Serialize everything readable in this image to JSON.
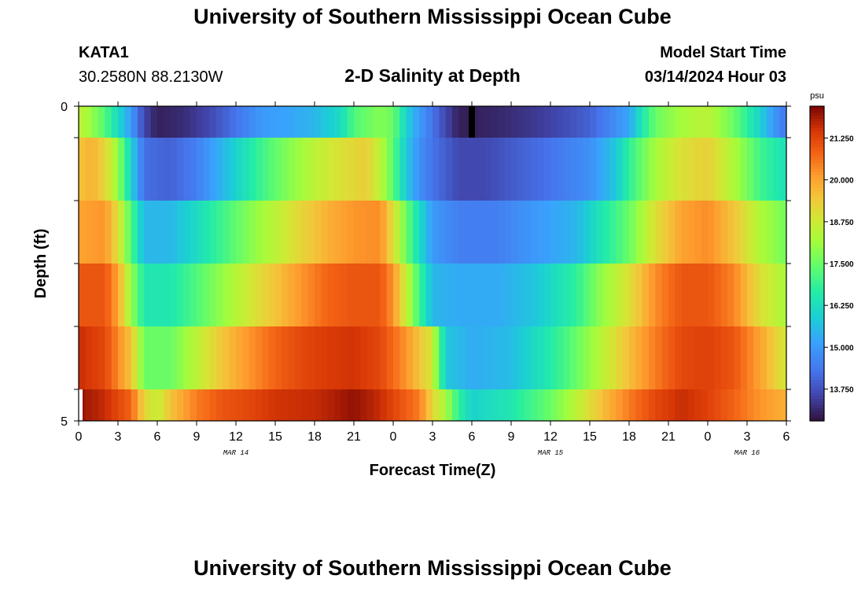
{
  "header": {
    "title": "University of Southern Mississippi Ocean Cube",
    "station": "KATA1",
    "coords": "30.2580N  88.2130W",
    "subtitle": "2-D Salinity at Depth",
    "model_label": "Model Start Time",
    "model_time": "03/14/2024 Hour 03"
  },
  "footer": {
    "title": "University of Southern Mississippi Ocean Cube"
  },
  "chart_data": {
    "type": "heatmap",
    "title": "2-D Salinity at Depth",
    "xlabel": "Forecast Time(Z)",
    "ylabel": "Depth (ft)",
    "x_hours_range": [
      0,
      54
    ],
    "y_range": [
      0,
      5
    ],
    "y_tick_labels": [
      "0",
      "5"
    ],
    "x_tick_labels": [
      "0",
      "3",
      "6",
      "9",
      "12",
      "15",
      "18",
      "21",
      "0",
      "3",
      "6",
      "9",
      "12",
      "15",
      "18",
      "21",
      "0",
      "3",
      "6"
    ],
    "date_labels": [
      {
        "text": "MAR 14",
        "hour": 12
      },
      {
        "text": "MAR 15",
        "hour": 36
      },
      {
        "text": "MAR 16",
        "hour": 51
      }
    ],
    "colorbar": {
      "unit": "psu",
      "min": 12.8,
      "max": 22.2,
      "tick_values": [
        21.25,
        20.0,
        18.75,
        17.5,
        16.25,
        15.0,
        13.75
      ],
      "tick_labels": [
        "21.250",
        "20.000",
        "18.750",
        "17.500",
        "16.250",
        "15.000",
        "13.750"
      ]
    },
    "depth_layers": [
      {
        "layer": 1,
        "keys": [
          [
            0,
            18.6
          ],
          [
            1,
            18.0
          ],
          [
            2,
            17.2
          ],
          [
            3,
            16.2
          ],
          [
            4,
            15.0
          ],
          [
            5,
            13.6
          ],
          [
            6,
            13.0
          ],
          [
            8,
            13.2
          ],
          [
            10,
            13.6
          ],
          [
            12,
            14.3
          ],
          [
            14,
            15.0
          ],
          [
            16,
            15.2
          ],
          [
            18,
            15.5
          ],
          [
            20,
            16.2
          ],
          [
            21,
            17.2
          ],
          [
            23,
            17.8
          ],
          [
            24,
            17.5
          ],
          [
            25,
            16.0
          ],
          [
            26,
            15.0
          ],
          [
            28,
            13.6
          ],
          [
            29,
            13.0
          ],
          [
            30,
            13.0
          ],
          [
            33,
            13.2
          ],
          [
            36,
            13.5
          ],
          [
            39,
            14.0
          ],
          [
            42,
            15.2
          ],
          [
            43,
            16.5
          ],
          [
            44,
            17.5
          ],
          [
            46,
            18.2
          ],
          [
            48,
            18.5
          ],
          [
            50,
            17.5
          ],
          [
            52,
            16.0
          ],
          [
            53,
            15.0
          ],
          [
            54,
            14.3
          ]
        ]
      },
      {
        "layer": 2,
        "keys": [
          [
            0,
            19.5
          ],
          [
            1,
            19.8
          ],
          [
            2,
            19.2
          ],
          [
            3,
            18.0
          ],
          [
            4,
            16.0
          ],
          [
            5,
            14.2
          ],
          [
            7,
            14.0
          ],
          [
            9,
            14.5
          ],
          [
            11,
            15.5
          ],
          [
            12,
            16.0
          ],
          [
            14,
            17.0
          ],
          [
            16,
            17.8
          ],
          [
            18,
            18.5
          ],
          [
            20,
            19.0
          ],
          [
            22,
            19.3
          ],
          [
            23,
            18.5
          ],
          [
            24,
            17.3
          ],
          [
            25,
            15.8
          ],
          [
            26,
            14.8
          ],
          [
            27,
            14.3
          ],
          [
            29,
            13.6
          ],
          [
            31,
            13.6
          ],
          [
            33,
            13.9
          ],
          [
            36,
            14.3
          ],
          [
            39,
            14.8
          ],
          [
            41,
            15.8
          ],
          [
            42,
            16.8
          ],
          [
            44,
            18.2
          ],
          [
            46,
            19.0
          ],
          [
            48,
            19.3
          ],
          [
            50,
            18.3
          ],
          [
            52,
            17.0
          ],
          [
            54,
            16.3
          ]
        ]
      },
      {
        "layer": 3,
        "keys": [
          [
            0,
            20.0
          ],
          [
            2,
            20.2
          ],
          [
            3,
            19.0
          ],
          [
            4,
            17.2
          ],
          [
            5,
            15.5
          ],
          [
            7,
            15.5
          ],
          [
            9,
            16.2
          ],
          [
            11,
            17.0
          ],
          [
            13,
            17.8
          ],
          [
            15,
            18.5
          ],
          [
            17,
            19.2
          ],
          [
            19,
            19.8
          ],
          [
            21,
            20.2
          ],
          [
            23,
            20.3
          ],
          [
            24,
            19.0
          ],
          [
            25,
            17.5
          ],
          [
            26,
            16.2
          ],
          [
            27,
            15.0
          ],
          [
            29,
            14.5
          ],
          [
            32,
            14.5
          ],
          [
            35,
            15.0
          ],
          [
            38,
            15.5
          ],
          [
            40,
            16.5
          ],
          [
            42,
            17.5
          ],
          [
            44,
            19.0
          ],
          [
            46,
            20.0
          ],
          [
            48,
            20.3
          ],
          [
            50,
            19.5
          ],
          [
            52,
            18.3
          ],
          [
            54,
            17.6
          ]
        ]
      },
      {
        "layer": 4,
        "keys": [
          [
            0,
            21.0
          ],
          [
            2,
            21.0
          ],
          [
            3,
            20.0
          ],
          [
            4,
            18.0
          ],
          [
            5,
            16.5
          ],
          [
            7,
            16.5
          ],
          [
            9,
            17.2
          ],
          [
            11,
            18.0
          ],
          [
            13,
            18.8
          ],
          [
            15,
            19.5
          ],
          [
            17,
            20.2
          ],
          [
            19,
            20.8
          ],
          [
            21,
            21.0
          ],
          [
            23,
            21.0
          ],
          [
            24,
            20.2
          ],
          [
            25,
            18.6
          ],
          [
            26,
            17.0
          ],
          [
            27,
            15.5
          ],
          [
            29,
            15.3
          ],
          [
            32,
            15.3
          ],
          [
            35,
            15.8
          ],
          [
            38,
            16.8
          ],
          [
            40,
            18.0
          ],
          [
            42,
            19.0
          ],
          [
            44,
            20.3
          ],
          [
            46,
            21.0
          ],
          [
            48,
            21.0
          ],
          [
            50,
            20.4
          ],
          [
            52,
            19.0
          ],
          [
            54,
            18.2
          ]
        ]
      },
      {
        "layer": 5,
        "keys": [
          [
            0,
            21.6
          ],
          [
            2,
            21.2
          ],
          [
            4,
            19.5
          ],
          [
            5,
            17.5
          ],
          [
            7,
            17.5
          ],
          [
            9,
            18.5
          ],
          [
            11,
            19.5
          ],
          [
            13,
            20.2
          ],
          [
            15,
            20.8
          ],
          [
            17,
            21.2
          ],
          [
            19,
            21.4
          ],
          [
            21,
            21.5
          ],
          [
            23,
            21.2
          ],
          [
            25,
            20.2
          ],
          [
            27,
            18.8
          ],
          [
            28,
            15.8
          ],
          [
            30,
            15.3
          ],
          [
            33,
            15.6
          ],
          [
            36,
            16.6
          ],
          [
            38,
            17.5
          ],
          [
            40,
            18.5
          ],
          [
            42,
            19.6
          ],
          [
            44,
            20.5
          ],
          [
            46,
            21.2
          ],
          [
            48,
            21.3
          ],
          [
            50,
            21.0
          ],
          [
            52,
            20.0
          ],
          [
            54,
            18.8
          ]
        ]
      },
      {
        "layer": 6,
        "keys": [
          [
            0,
            22.0
          ],
          [
            2,
            21.6
          ],
          [
            4,
            20.8
          ],
          [
            5,
            19.2
          ],
          [
            6,
            18.6
          ],
          [
            7,
            19.5
          ],
          [
            9,
            20.5
          ],
          [
            11,
            21.0
          ],
          [
            13,
            21.2
          ],
          [
            15,
            21.5
          ],
          [
            18,
            21.6
          ],
          [
            21,
            22.0
          ],
          [
            23,
            21.6
          ],
          [
            26,
            20.5
          ],
          [
            27,
            19.2
          ],
          [
            28,
            18.2
          ],
          [
            29,
            16.8
          ],
          [
            30,
            16.0
          ],
          [
            33,
            16.5
          ],
          [
            36,
            17.5
          ],
          [
            38,
            18.5
          ],
          [
            40,
            19.6
          ],
          [
            42,
            20.5
          ],
          [
            44,
            21.2
          ],
          [
            46,
            21.6
          ],
          [
            48,
            21.3
          ],
          [
            50,
            20.8
          ],
          [
            52,
            20.2
          ],
          [
            54,
            19.8
          ]
        ]
      }
    ]
  }
}
